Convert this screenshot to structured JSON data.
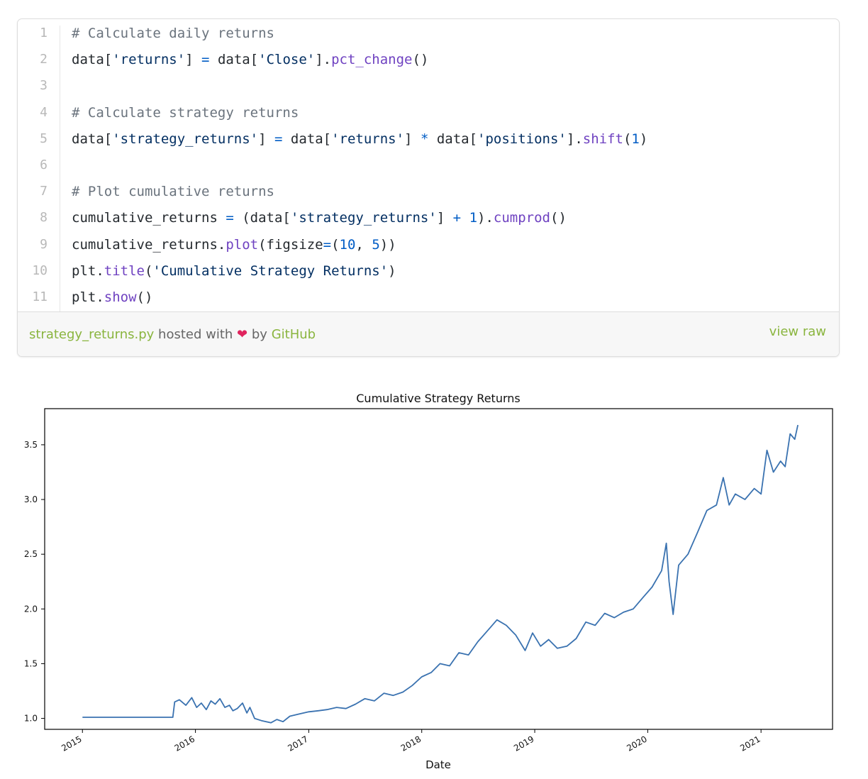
{
  "gist": {
    "code_lines": [
      {
        "num": "1",
        "tokens": [
          {
            "t": "# Calculate daily returns",
            "c": "com"
          }
        ]
      },
      {
        "num": "2",
        "tokens": [
          {
            "t": "data[",
            "c": ""
          },
          {
            "t": "'returns'",
            "c": "str"
          },
          {
            "t": "] ",
            "c": ""
          },
          {
            "t": "=",
            "c": "op"
          },
          {
            "t": " data[",
            "c": ""
          },
          {
            "t": "'Close'",
            "c": "str"
          },
          {
            "t": "].",
            "c": ""
          },
          {
            "t": "pct_change",
            "c": "fn"
          },
          {
            "t": "()",
            "c": ""
          }
        ]
      },
      {
        "num": "3",
        "tokens": []
      },
      {
        "num": "4",
        "tokens": [
          {
            "t": "# Calculate strategy returns",
            "c": "com"
          }
        ]
      },
      {
        "num": "5",
        "tokens": [
          {
            "t": "data[",
            "c": ""
          },
          {
            "t": "'strategy_returns'",
            "c": "str"
          },
          {
            "t": "] ",
            "c": ""
          },
          {
            "t": "=",
            "c": "op"
          },
          {
            "t": " data[",
            "c": ""
          },
          {
            "t": "'returns'",
            "c": "str"
          },
          {
            "t": "] ",
            "c": ""
          },
          {
            "t": "*",
            "c": "op"
          },
          {
            "t": " data[",
            "c": ""
          },
          {
            "t": "'positions'",
            "c": "str"
          },
          {
            "t": "].",
            "c": ""
          },
          {
            "t": "shift",
            "c": "fn"
          },
          {
            "t": "(",
            "c": ""
          },
          {
            "t": "1",
            "c": "num"
          },
          {
            "t": ")",
            "c": ""
          }
        ]
      },
      {
        "num": "6",
        "tokens": []
      },
      {
        "num": "7",
        "tokens": [
          {
            "t": "# Plot cumulative returns",
            "c": "com"
          }
        ]
      },
      {
        "num": "8",
        "tokens": [
          {
            "t": "cumulative_returns ",
            "c": ""
          },
          {
            "t": "=",
            "c": "op"
          },
          {
            "t": " (data[",
            "c": ""
          },
          {
            "t": "'strategy_returns'",
            "c": "str"
          },
          {
            "t": "] ",
            "c": ""
          },
          {
            "t": "+",
            "c": "op"
          },
          {
            "t": " ",
            "c": ""
          },
          {
            "t": "1",
            "c": "num"
          },
          {
            "t": ").",
            "c": ""
          },
          {
            "t": "cumprod",
            "c": "fn"
          },
          {
            "t": "()",
            "c": ""
          }
        ]
      },
      {
        "num": "9",
        "tokens": [
          {
            "t": "cumulative_returns.",
            "c": ""
          },
          {
            "t": "plot",
            "c": "fn"
          },
          {
            "t": "(figsize",
            "c": ""
          },
          {
            "t": "=",
            "c": "op"
          },
          {
            "t": "(",
            "c": ""
          },
          {
            "t": "10",
            "c": "num"
          },
          {
            "t": ", ",
            "c": ""
          },
          {
            "t": "5",
            "c": "num"
          },
          {
            "t": "))",
            "c": ""
          }
        ]
      },
      {
        "num": "10",
        "tokens": [
          {
            "t": "plt.",
            "c": ""
          },
          {
            "t": "title",
            "c": "fn"
          },
          {
            "t": "(",
            "c": ""
          },
          {
            "t": "'Cumulative Strategy Returns'",
            "c": "str"
          },
          {
            "t": ")",
            "c": ""
          }
        ]
      },
      {
        "num": "11",
        "tokens": [
          {
            "t": "plt.",
            "c": ""
          },
          {
            "t": "show",
            "c": "fn"
          },
          {
            "t": "()",
            "c": ""
          }
        ]
      }
    ],
    "filename": "strategy_returns.py",
    "hosted_with": "hosted with",
    "heart": "❤",
    "by": "by",
    "host": "GitHub",
    "view_raw": "view raw"
  },
  "chart_data": {
    "type": "line",
    "title": "Cumulative Strategy Returns",
    "xlabel": "Date",
    "ylabel": "",
    "x_ticks": [
      "2015",
      "2016",
      "2017",
      "2018",
      "2019",
      "2020",
      "2021"
    ],
    "y_ticks": [
      "1.0",
      "1.5",
      "2.0",
      "2.5",
      "3.0",
      "3.5"
    ],
    "xlim": [
      "2014-09-01",
      "2021-08-20"
    ],
    "ylim": [
      0.9,
      3.83
    ],
    "grid": false,
    "line_color": "#3a72b0",
    "series": [
      {
        "x": [
          "2015-01-01",
          "2015-06-01",
          "2015-10-20",
          "2015-10-26",
          "2015-11-10",
          "2015-12-01",
          "2015-12-20",
          "2016-01-05",
          "2016-01-20",
          "2016-02-05",
          "2016-02-20",
          "2016-03-05",
          "2016-03-20",
          "2016-04-05",
          "2016-04-20",
          "2016-05-01",
          "2016-05-15",
          "2016-06-01",
          "2016-06-15",
          "2016-06-25",
          "2016-07-10",
          "2016-08-01",
          "2016-09-01",
          "2016-09-20",
          "2016-10-10",
          "2016-11-01",
          "2016-12-01",
          "2017-01-01",
          "2017-02-01",
          "2017-03-01",
          "2017-04-01",
          "2017-05-01",
          "2017-06-01",
          "2017-07-01",
          "2017-08-01",
          "2017-09-01",
          "2017-10-01",
          "2017-11-01",
          "2017-12-01",
          "2018-01-01",
          "2018-02-01",
          "2018-03-01",
          "2018-04-01",
          "2018-05-01",
          "2018-06-01",
          "2018-07-01",
          "2018-08-01",
          "2018-09-01",
          "2018-10-01",
          "2018-11-01",
          "2018-12-01",
          "2018-12-25",
          "2019-01-20",
          "2019-02-15",
          "2019-03-15",
          "2019-04-15",
          "2019-05-15",
          "2019-06-15",
          "2019-07-15",
          "2019-08-15",
          "2019-09-15",
          "2019-10-15",
          "2019-11-15",
          "2019-12-15",
          "2020-01-15",
          "2020-02-15",
          "2020-03-01",
          "2020-03-10",
          "2020-03-23",
          "2020-04-10",
          "2020-05-10",
          "2020-06-10",
          "2020-07-10",
          "2020-08-10",
          "2020-09-01",
          "2020-09-20",
          "2020-10-10",
          "2020-11-10",
          "2020-12-10",
          "2021-01-01",
          "2021-01-20",
          "2021-02-10",
          "2021-03-05",
          "2021-03-20",
          "2021-04-05",
          "2021-04-20",
          "2021-04-30"
        ],
        "y": [
          1.01,
          1.01,
          1.01,
          1.15,
          1.17,
          1.12,
          1.19,
          1.1,
          1.14,
          1.08,
          1.16,
          1.13,
          1.18,
          1.1,
          1.12,
          1.07,
          1.09,
          1.14,
          1.05,
          1.1,
          1.0,
          0.98,
          0.96,
          0.99,
          0.97,
          1.02,
          1.04,
          1.06,
          1.07,
          1.08,
          1.1,
          1.09,
          1.13,
          1.18,
          1.16,
          1.23,
          1.21,
          1.24,
          1.3,
          1.38,
          1.42,
          1.5,
          1.48,
          1.6,
          1.58,
          1.7,
          1.8,
          1.9,
          1.85,
          1.76,
          1.62,
          1.78,
          1.66,
          1.72,
          1.64,
          1.66,
          1.73,
          1.88,
          1.85,
          1.96,
          1.92,
          1.97,
          2.0,
          2.1,
          2.2,
          2.35,
          2.6,
          2.25,
          1.95,
          2.4,
          2.5,
          2.7,
          2.9,
          2.95,
          3.2,
          2.95,
          3.05,
          3.0,
          3.1,
          3.05,
          3.45,
          3.25,
          3.35,
          3.3,
          3.6,
          3.55,
          3.68
        ]
      }
    ]
  }
}
